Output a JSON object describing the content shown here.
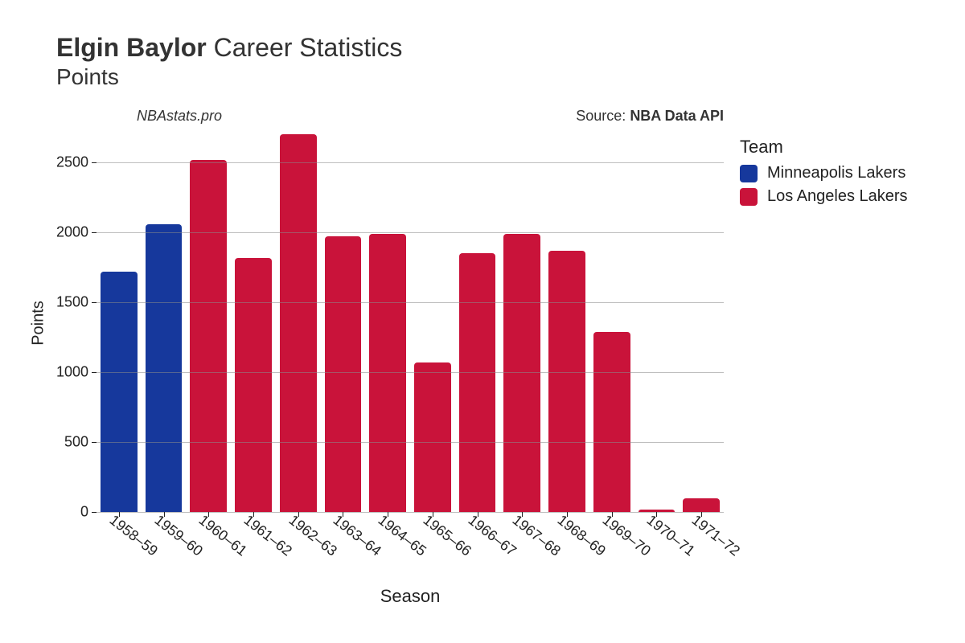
{
  "title": {
    "name_bold": "Elgin Baylor",
    "rest": "Career Statistics",
    "subtitle": "Points"
  },
  "annotations": {
    "site": "NBAstats.pro",
    "source_label": "Source: ",
    "source_value": "NBA Data API"
  },
  "chart": {
    "type": "bar",
    "ylabel": "Points",
    "xlabel": "Season",
    "ylim": [
      0,
      2700
    ],
    "yticks": [
      0,
      500,
      1000,
      1500,
      2000,
      2500
    ],
    "background_color": "#ffffff",
    "grid_color": "#8a8a8a",
    "axis_text_color": "#222222",
    "label_fontsize": 18,
    "title_fontsize": 32,
    "bar_corner_radius": 4,
    "bar_width_ratio": 0.82,
    "seasons": [
      "1958–59",
      "1959–60",
      "1960–61",
      "1961–62",
      "1962–63",
      "1963–64",
      "1964–65",
      "1965–66",
      "1966–67",
      "1967–68",
      "1968–69",
      "1969–70",
      "1970–71",
      "1971–72"
    ],
    "values": [
      1720,
      2060,
      2520,
      1820,
      2700,
      1970,
      1990,
      1070,
      1850,
      1990,
      1870,
      1290,
      20,
      100
    ],
    "bar_colors": [
      "#16389c",
      "#16389c",
      "#c9133a",
      "#c9133a",
      "#c9133a",
      "#c9133a",
      "#c9133a",
      "#c9133a",
      "#c9133a",
      "#c9133a",
      "#c9133a",
      "#c9133a",
      "#c9133a",
      "#c9133a"
    ]
  },
  "legend": {
    "title": "Team",
    "items": [
      {
        "label": "Minneapolis Lakers",
        "color": "#16389c"
      },
      {
        "label": "Los Angeles Lakers",
        "color": "#c9133a"
      }
    ]
  }
}
